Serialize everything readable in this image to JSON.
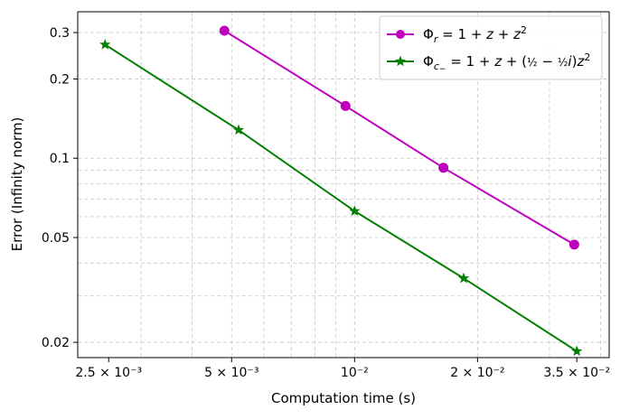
{
  "chart_data": {
    "type": "line",
    "xlabel": "Computation time (s)",
    "ylabel": "Error (Infinity norm)",
    "xscale": "log",
    "yscale": "log",
    "xlim": [
      0.0021,
      0.042
    ],
    "ylim": [
      0.0175,
      0.36
    ],
    "grid": true,
    "legend_position": "top-right",
    "xticks": [
      {
        "value": 0.0025,
        "label": "2.5 × 10⁻³"
      },
      {
        "value": 0.005,
        "label": "5 × 10⁻³"
      },
      {
        "value": 0.01,
        "label": "10⁻²"
      },
      {
        "value": 0.02,
        "label": "2 × 10⁻²"
      },
      {
        "value": 0.035,
        "label": "3.5 × 10⁻²"
      }
    ],
    "yticks": [
      {
        "value": 0.02,
        "label": "0.02"
      },
      {
        "value": 0.05,
        "label": "0.05"
      },
      {
        "value": 0.1,
        "label": "0.1"
      },
      {
        "value": 0.2,
        "label": "0.2"
      },
      {
        "value": 0.3,
        "label": "0.3"
      }
    ],
    "series": [
      {
        "name": "Φr = 1 + z + z²",
        "color": "#bf00bf",
        "marker": "circle",
        "x": [
          0.0048,
          0.0095,
          0.0165,
          0.0345
        ],
        "y": [
          0.305,
          0.158,
          0.092,
          0.047
        ]
      },
      {
        "name": "Φc− = 1 + z + (½ − ½i)z²",
        "color": "#007f00",
        "marker": "star",
        "x": [
          0.00245,
          0.0052,
          0.01,
          0.0185,
          0.035
        ],
        "y": [
          0.27,
          0.128,
          0.063,
          0.035,
          0.0185
        ]
      }
    ]
  }
}
